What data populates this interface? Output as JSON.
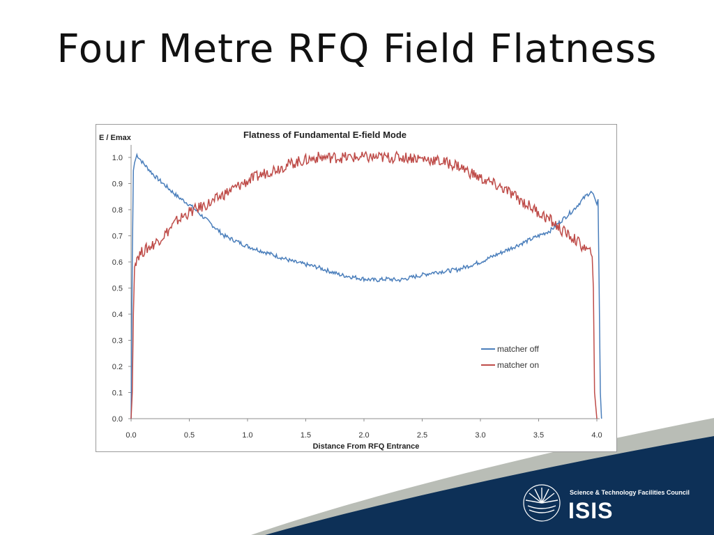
{
  "slide": {
    "title": "Four Metre RFQ Field Flatness"
  },
  "logo": {
    "org": "Science & Technology Facilities Council",
    "name": "ISIS"
  },
  "colors": {
    "footer_navy": "#0d3057",
    "footer_grey": "#b9bdb6",
    "series_off": "#4a7ebb",
    "series_on": "#be4b48"
  },
  "chart_data": {
    "type": "line",
    "title": "Flatness of Fundamental E-field Mode",
    "xlabel": "Distance From RFQ Entrance",
    "ylabel": "E / Emax",
    "xlim": [
      0,
      4.0
    ],
    "ylim": [
      0,
      1.0
    ],
    "xticks": [
      "0.0",
      "0.5",
      "1.0",
      "1.5",
      "2.0",
      "2.5",
      "3.0",
      "3.5",
      "4.0"
    ],
    "yticks": [
      "0.0",
      "0.1",
      "0.2",
      "0.3",
      "0.4",
      "0.5",
      "0.6",
      "0.7",
      "0.8",
      "0.9",
      "1.0"
    ],
    "legend_position": "bottom-right",
    "grid": false,
    "series": [
      {
        "name": "matcher off",
        "color": "#4a7ebb",
        "x": [
          0.0,
          0.01,
          0.02,
          0.03,
          0.05,
          0.1,
          0.2,
          0.3,
          0.4,
          0.5,
          0.6,
          0.7,
          0.8,
          0.9,
          1.0,
          1.2,
          1.4,
          1.6,
          1.8,
          2.0,
          2.1,
          2.2,
          2.3,
          2.4,
          2.6,
          2.8,
          3.0,
          3.2,
          3.4,
          3.6,
          3.7,
          3.8,
          3.9,
          3.95,
          3.97,
          4.0,
          4.01,
          4.02,
          4.03,
          4.04
        ],
        "y": [
          0.0,
          0.6,
          0.95,
          0.98,
          1.01,
          0.98,
          0.93,
          0.89,
          0.85,
          0.82,
          0.78,
          0.74,
          0.7,
          0.68,
          0.66,
          0.63,
          0.6,
          0.58,
          0.55,
          0.535,
          0.53,
          0.535,
          0.53,
          0.54,
          0.56,
          0.57,
          0.6,
          0.64,
          0.68,
          0.72,
          0.76,
          0.8,
          0.85,
          0.87,
          0.86,
          0.82,
          0.84,
          0.5,
          0.1,
          0.0
        ]
      },
      {
        "name": "matcher on",
        "color": "#be4b48",
        "x": [
          0.0,
          0.01,
          0.02,
          0.03,
          0.05,
          0.1,
          0.2,
          0.3,
          0.4,
          0.5,
          0.6,
          0.7,
          0.8,
          1.0,
          1.2,
          1.4,
          1.5,
          1.6,
          1.8,
          2.0,
          2.2,
          2.4,
          2.6,
          2.8,
          3.0,
          3.2,
          3.4,
          3.6,
          3.7,
          3.8,
          3.9,
          3.95,
          3.96,
          3.97,
          3.98,
          4.0
        ],
        "y": [
          0.0,
          0.1,
          0.4,
          0.58,
          0.62,
          0.64,
          0.67,
          0.71,
          0.76,
          0.79,
          0.81,
          0.83,
          0.86,
          0.91,
          0.95,
          0.98,
          0.99,
          1.0,
          1.0,
          1.0,
          1.0,
          1.0,
          0.99,
          0.97,
          0.92,
          0.88,
          0.82,
          0.76,
          0.72,
          0.69,
          0.65,
          0.63,
          0.62,
          0.5,
          0.1,
          0.0
        ]
      }
    ]
  }
}
